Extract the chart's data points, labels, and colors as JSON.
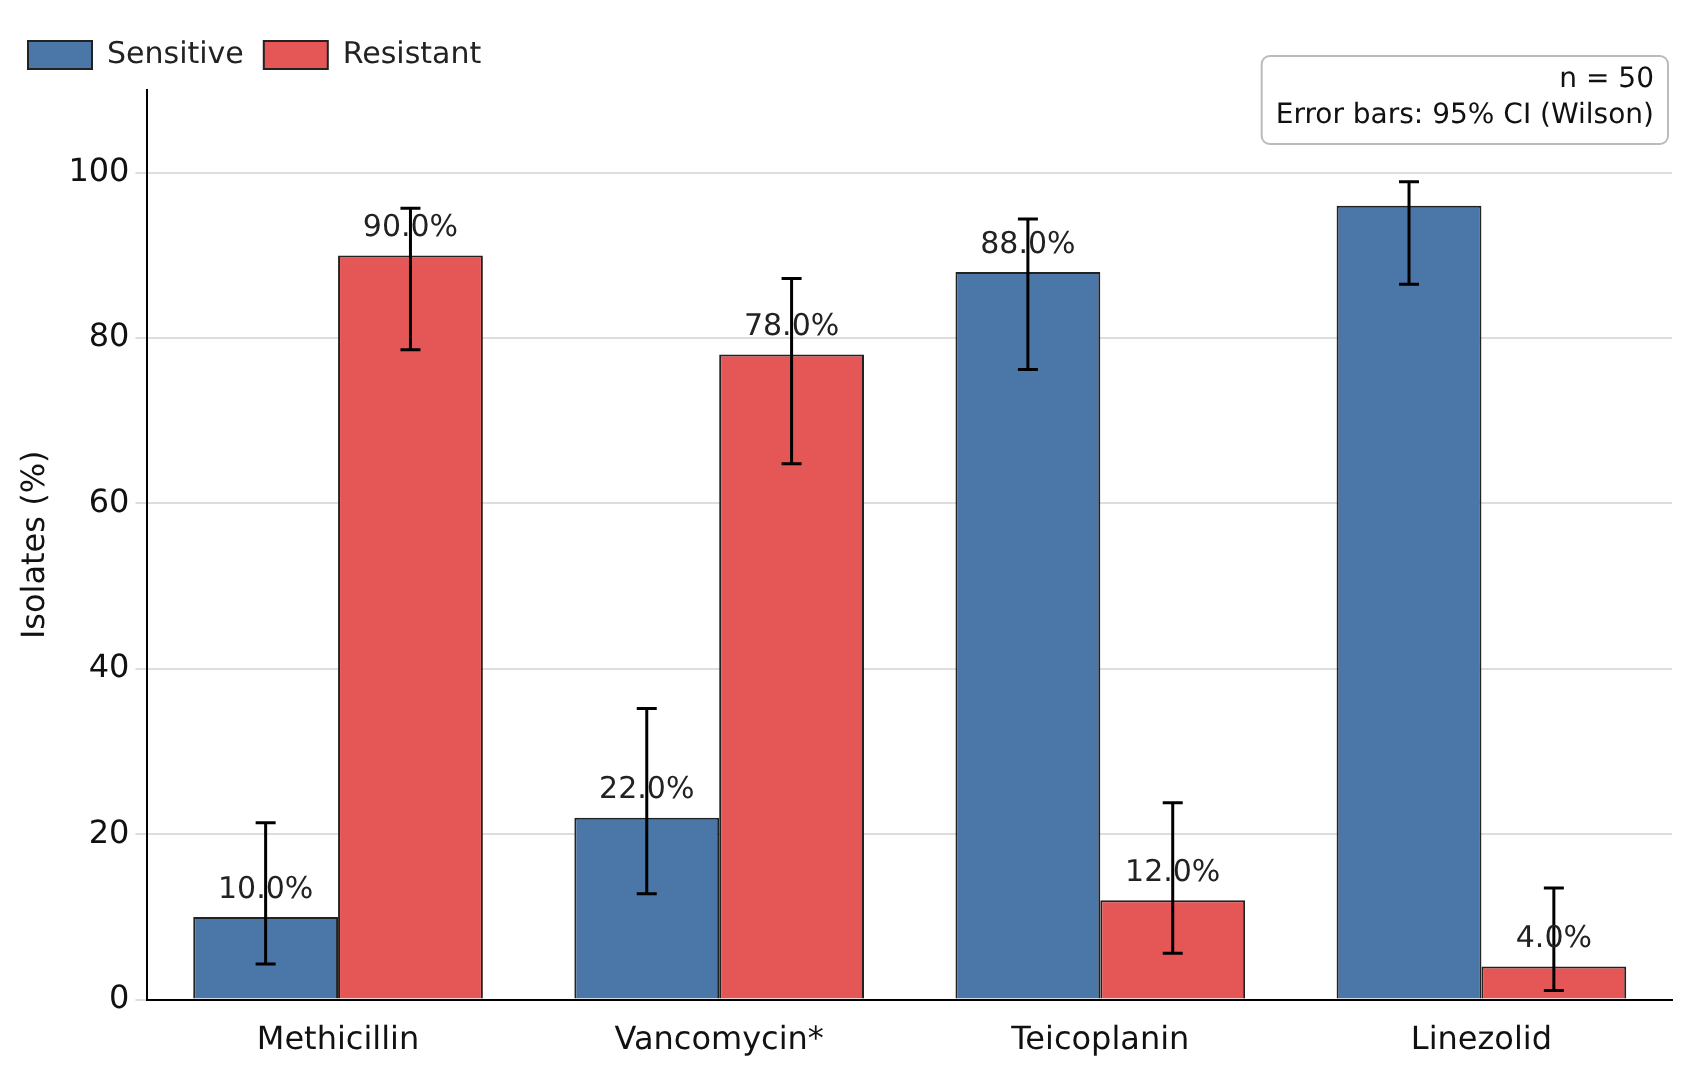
{
  "chart_data": {
    "type": "bar",
    "ylabel": "Isolates (%)",
    "categories": [
      "Methicillin",
      "Vancomycin*",
      "Teicoplanin",
      "Linezolid"
    ],
    "series": [
      {
        "name": "Sensitive",
        "color": "#4a76a8",
        "values": [
          10,
          22,
          88,
          96
        ],
        "errors": [
          [
            4.3,
            21.4
          ],
          [
            12.8,
            35.2
          ],
          [
            76.2,
            94.4
          ],
          [
            86.5,
            98.9
          ]
        ],
        "value_labels": [
          "10.0%",
          "22.0%",
          "88.0%",
          null
        ]
      },
      {
        "name": "Resistant",
        "color": "#e45756",
        "values": [
          90,
          78,
          12,
          4
        ],
        "errors": [
          [
            78.6,
            95.7
          ],
          [
            64.8,
            87.2
          ],
          [
            5.6,
            23.8
          ],
          [
            1.1,
            13.5
          ]
        ],
        "value_labels": [
          "90.0%",
          "78.0%",
          "12.0%",
          "4.0%"
        ]
      }
    ],
    "ylim": [
      0,
      110
    ],
    "yticks": [
      0,
      20,
      40,
      60,
      80,
      100
    ],
    "grid": "y",
    "legend": "top left",
    "annotations": [
      "n = 50",
      "Error bars: 95% CI (Wilson)"
    ]
  }
}
